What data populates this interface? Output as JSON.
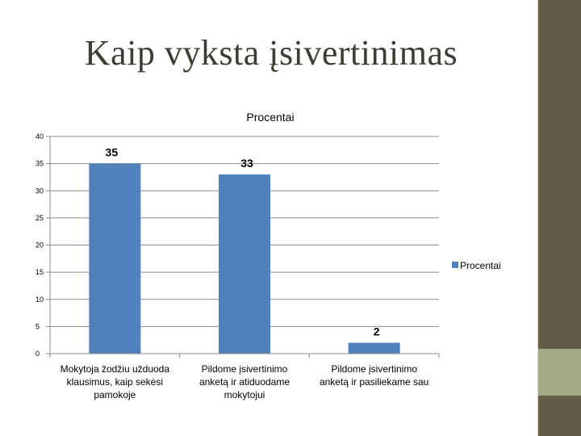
{
  "slide": {
    "title": "Kaip vyksta įsivertinimas"
  },
  "colors": {
    "bar": "#4f81bd",
    "sidebar_dark": "#615b47",
    "sidebar_light": "#a6a985"
  },
  "chart_data": {
    "type": "bar",
    "title": "Procentai",
    "categories": [
      [
        "Mokytoja žodžiu užduoda",
        "klausimus, kaip sekėsi",
        "pamokoje"
      ],
      [
        "Pildome įsivertinimo",
        "anketą ir atiduodame",
        "mokytojui"
      ],
      [
        "Pildome įsivertinimo",
        "anketą ir pasiliekame sau"
      ]
    ],
    "series": [
      {
        "name": "Procentai",
        "values": [
          35,
          33,
          2
        ]
      }
    ],
    "yticks": [
      0,
      5,
      10,
      15,
      20,
      25,
      30,
      35,
      40
    ],
    "ylim": [
      0,
      40
    ],
    "grid": true,
    "legend": "right",
    "xlabel": "",
    "ylabel": ""
  }
}
